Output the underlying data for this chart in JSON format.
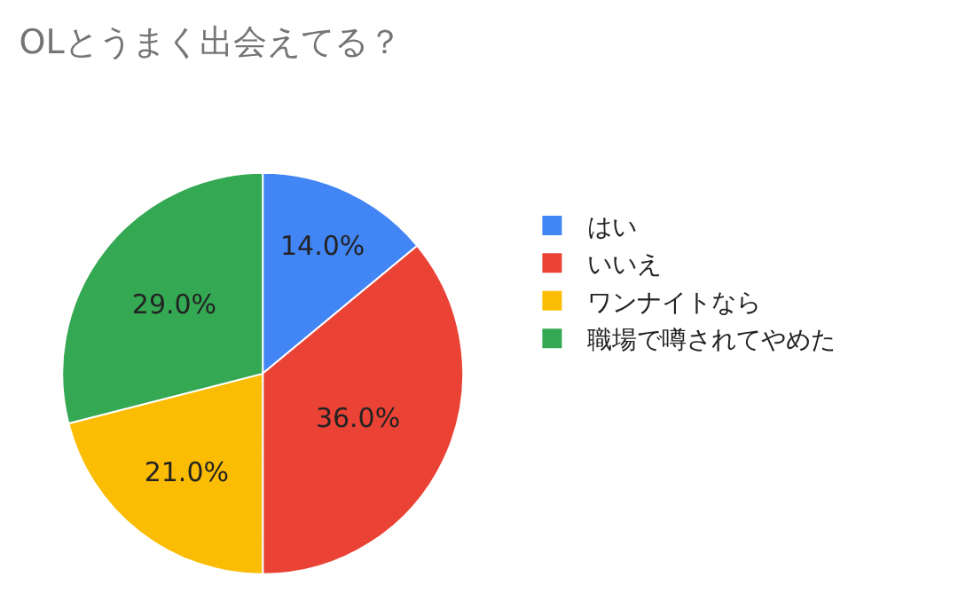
{
  "chart_data": {
    "type": "pie",
    "title": "OLとうまく出会えてる？",
    "categories": [
      "はい",
      "いいえ",
      "ワンナイトなら",
      "職場で噂されてやめた"
    ],
    "values": [
      14,
      36,
      21,
      29
    ],
    "value_labels": [
      "14.0%",
      "36.0%",
      "21.0%",
      "29.0%"
    ],
    "colors": [
      "#4285f4",
      "#ea4335",
      "#fbbc04",
      "#34a853"
    ],
    "legend": "right"
  }
}
